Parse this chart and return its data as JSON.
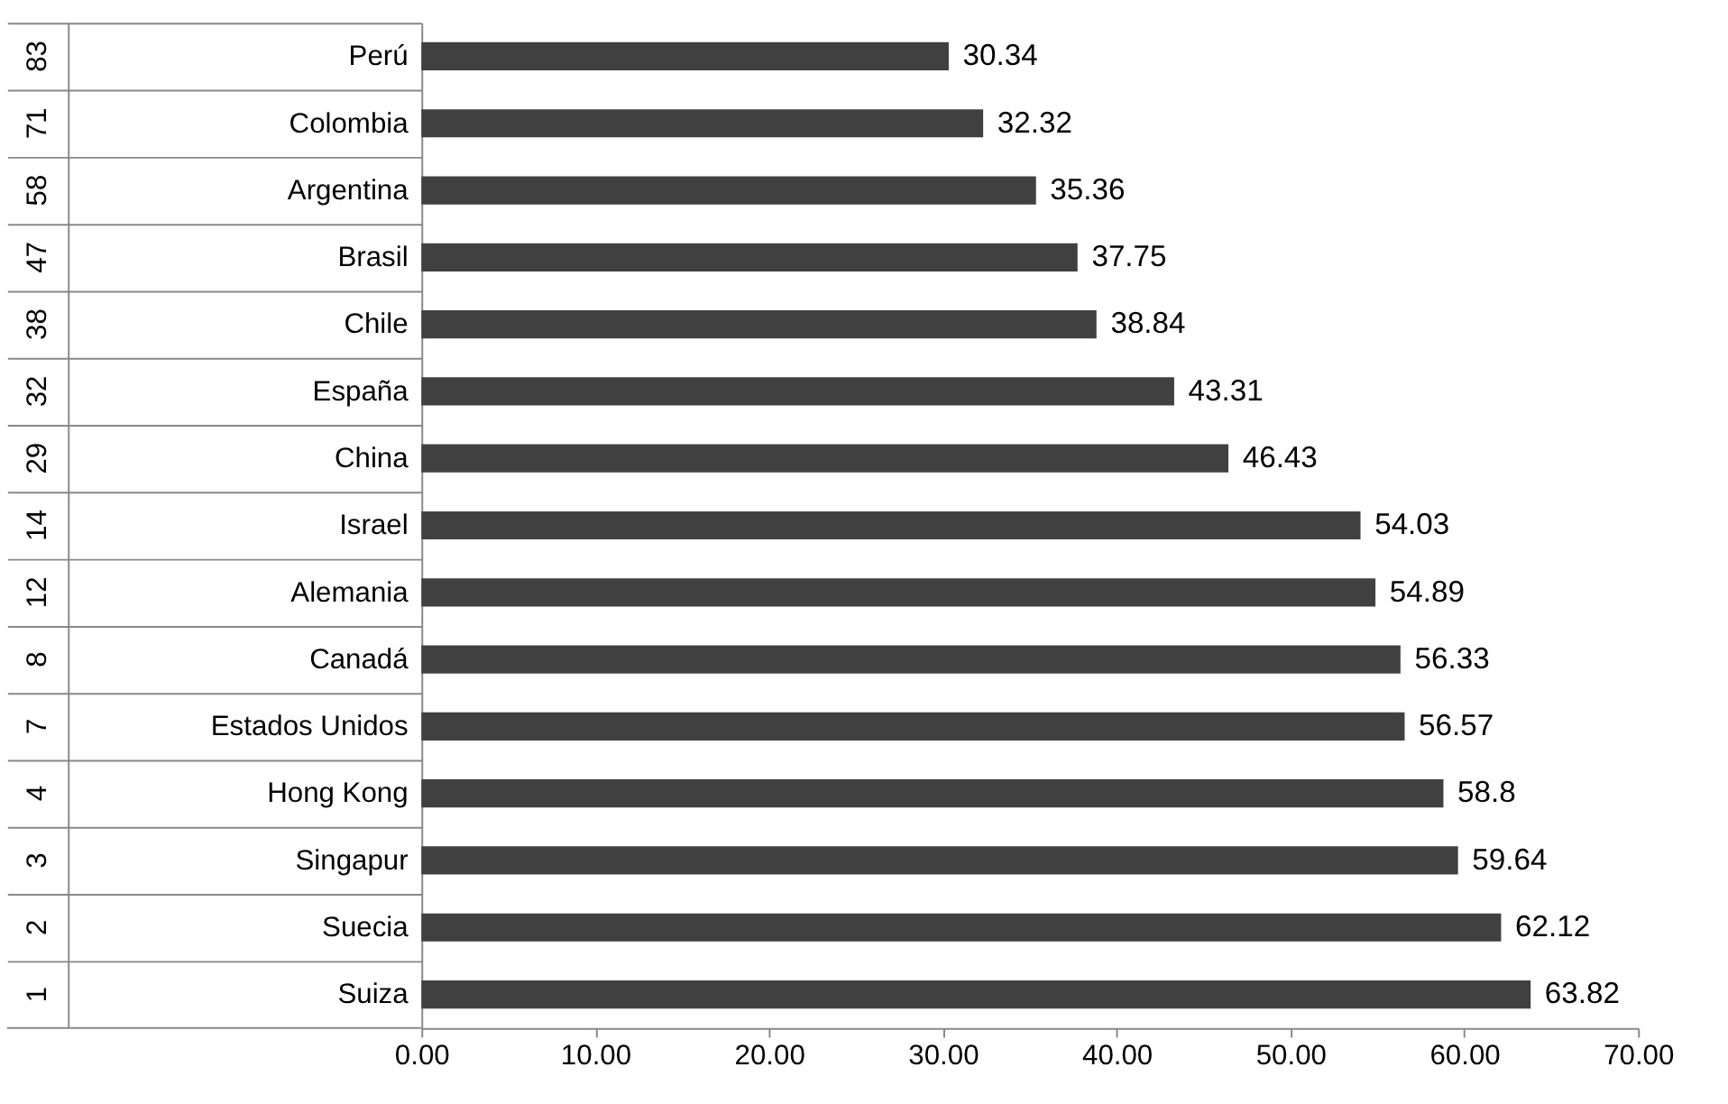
{
  "chart_data": {
    "type": "bar",
    "orientation": "horizontal",
    "categories": [
      "Perú",
      "Colombia",
      "Argentina",
      "Brasil",
      "Chile",
      "España",
      "China",
      "Israel",
      "Alemania",
      "Canadá",
      "Estados Unidos",
      "Hong Kong",
      "Singapur",
      "Suecia",
      "Suiza"
    ],
    "values": [
      30.34,
      32.32,
      35.36,
      37.75,
      38.84,
      43.31,
      46.43,
      54.03,
      54.89,
      56.33,
      56.57,
      58.8,
      59.64,
      62.12,
      63.82
    ],
    "color": "#404040",
    "annotations": [
      "83",
      "71",
      "58",
      "47",
      "38",
      "32",
      "29",
      "14",
      "12",
      "8",
      "7",
      "4",
      "3",
      "2",
      "1"
    ],
    "data_labels": true,
    "xlim": [
      0,
      70
    ],
    "xticks": [
      {
        "value": 0,
        "label": "0.00"
      },
      {
        "value": 10,
        "label": "10.00"
      },
      {
        "value": 20,
        "label": "20.00"
      },
      {
        "value": 30,
        "label": "30.00"
      },
      {
        "value": 40,
        "label": "40.00"
      },
      {
        "value": 50,
        "label": "50.00"
      },
      {
        "value": 60,
        "label": "60.00"
      },
      {
        "value": 70,
        "label": "70.00"
      }
    ],
    "grid": false
  }
}
